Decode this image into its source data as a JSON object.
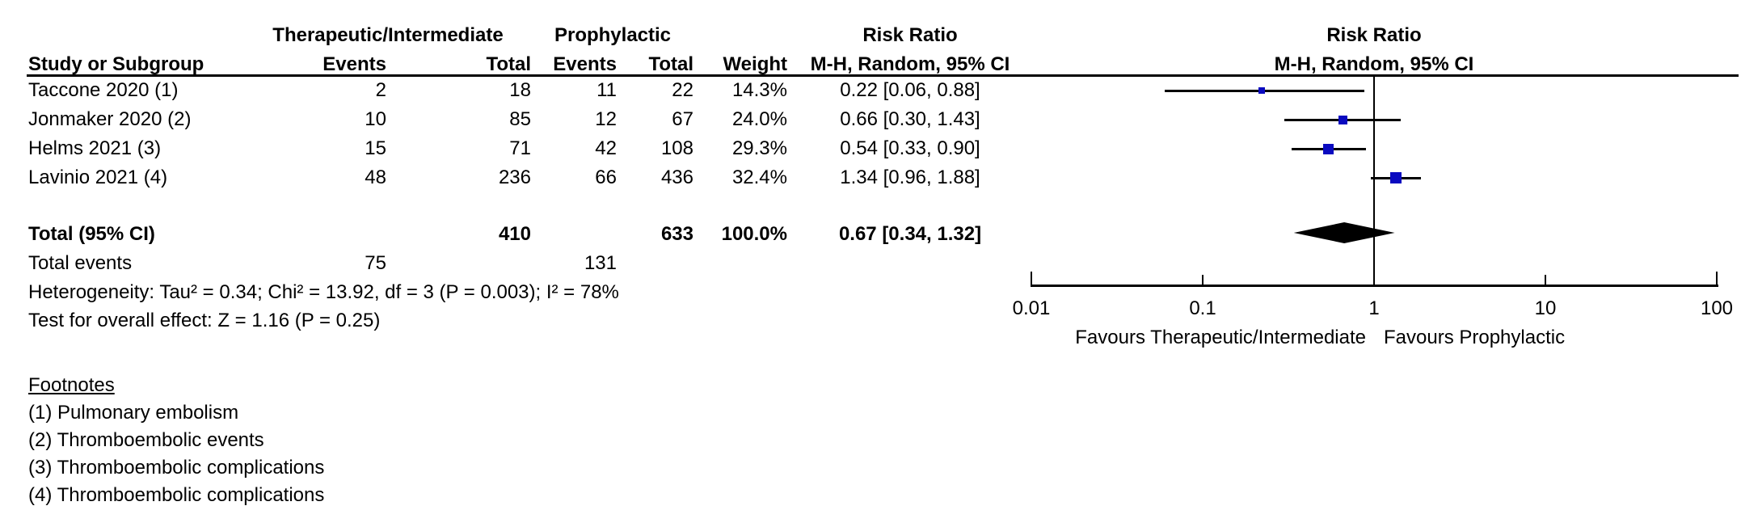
{
  "table": {
    "group1_header": "Therapeutic/Intermediate",
    "group2_header": "Prophylactic",
    "risk_ratio_header": "Risk Ratio",
    "method_header": "M-H, Random, 95% CI",
    "col_study": "Study or Subgroup",
    "col_events": "Events",
    "col_total": "Total",
    "col_weight": "Weight",
    "rows": [
      {
        "study": "Taccone 2020 (1)",
        "events1": "2",
        "total1": "18",
        "events2": "11",
        "total2": "22",
        "weight": "14.3%",
        "ci": "0.22 [0.06, 0.88]"
      },
      {
        "study": "Jonmaker 2020 (2)",
        "events1": "10",
        "total1": "85",
        "events2": "12",
        "total2": "67",
        "weight": "24.0%",
        "ci": "0.66 [0.30, 1.43]"
      },
      {
        "study": "Helms 2021 (3)",
        "events1": "15",
        "total1": "71",
        "events2": "42",
        "total2": "108",
        "weight": "29.3%",
        "ci": "0.54 [0.33, 0.90]"
      },
      {
        "study": "Lavinio 2021 (4)",
        "events1": "48",
        "total1": "236",
        "events2": "66",
        "total2": "436",
        "weight": "32.4%",
        "ci": "1.34 [0.96, 1.88]"
      }
    ],
    "total_row": {
      "label": "Total (95% CI)",
      "total1": "410",
      "total2": "633",
      "weight": "100.0%",
      "ci": "0.67 [0.34, 1.32]"
    },
    "total_events_row": {
      "label": "Total events",
      "events1": "75",
      "events2": "131"
    },
    "heterogeneity": "Heterogeneity: Tau² = 0.34; Chi² = 13.92, df = 3 (P = 0.003); I² = 78%",
    "overall_effect": "Test for overall effect: Z = 1.16 (P = 0.25)"
  },
  "footnotes": {
    "heading": "Footnotes",
    "items": [
      "(1) Pulmonary embolism",
      "(2) Thromboembolic events",
      "(3) Thromboembolic complications",
      "(4) Thromboembolic complications"
    ]
  },
  "chart_data": {
    "type": "forest",
    "effect_measure": "Risk Ratio",
    "method": "M-H, Random, 95% CI",
    "scale": "log10",
    "xlim": [
      0.01,
      100
    ],
    "axis_ticks": [
      "0.01",
      "0.1",
      "1",
      "10",
      "100"
    ],
    "favours_left": "Favours Therapeutic/Intermediate",
    "favours_right": "Favours Prophylactic",
    "studies": [
      {
        "name": "Taccone 2020",
        "rr": 0.22,
        "ci_low": 0.06,
        "ci_high": 0.88,
        "weight_pct": 14.3
      },
      {
        "name": "Jonmaker 2020",
        "rr": 0.66,
        "ci_low": 0.3,
        "ci_high": 1.43,
        "weight_pct": 24.0
      },
      {
        "name": "Helms 2021",
        "rr": 0.54,
        "ci_low": 0.33,
        "ci_high": 0.9,
        "weight_pct": 29.3
      },
      {
        "name": "Lavinio 2021",
        "rr": 1.34,
        "ci_low": 0.96,
        "ci_high": 1.88,
        "weight_pct": 32.4
      }
    ],
    "total": {
      "rr": 0.67,
      "ci_low": 0.34,
      "ci_high": 1.32
    },
    "marker_color": "#0a0ac0",
    "line_color": "#000000"
  }
}
